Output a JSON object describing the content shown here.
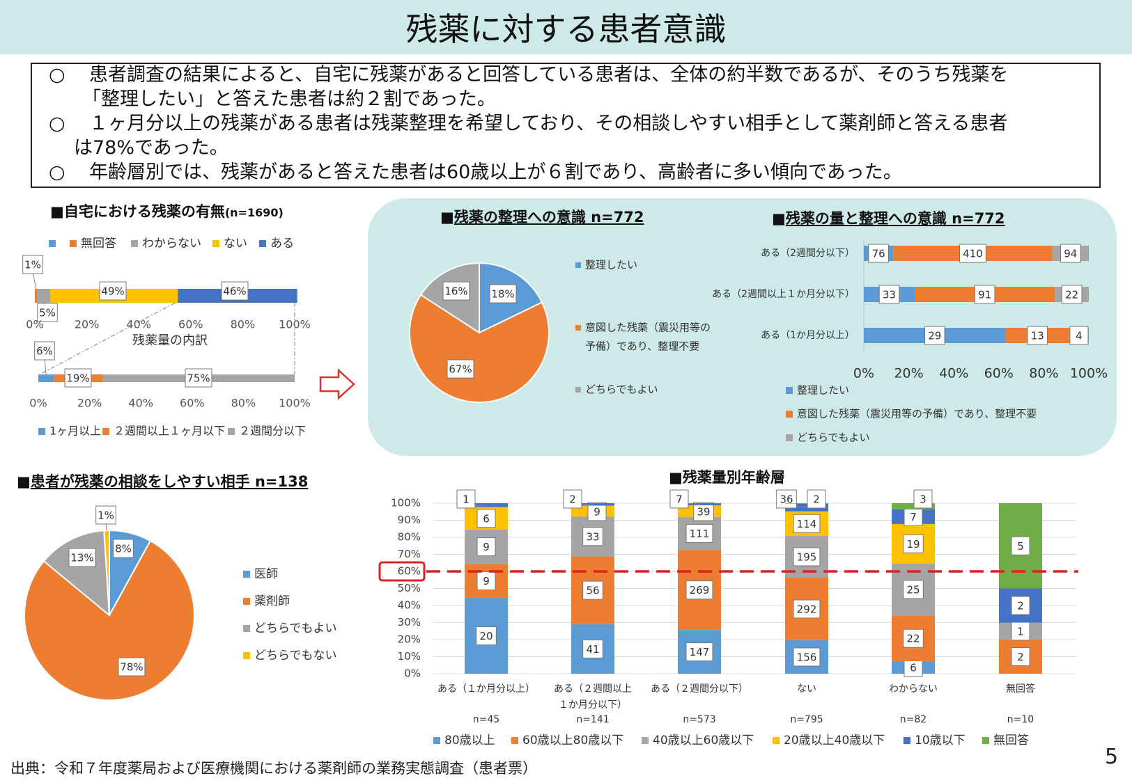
{
  "title": "残薬に対する患者意識",
  "summary": {
    "marker": "○",
    "b1_l1": "患者調査の結果によると、自宅に残薬があると回答している患者は、全体の約半数であるが、そのうち残薬を",
    "b1_l2": "「整理したい」と答えた患者は約２割であった。",
    "b2_l1": "１ヶ月分以上の残薬がある患者は残薬整理を希望しており、その相談しやすい相手として薬剤師と答える患者",
    "b2_l2": "は78%であった。",
    "b3_l1": "年齢層別では、残薬があると答えた患者は60歳以上が６割であり、高齢者に多い傾向であった。"
  },
  "sections": {
    "home_title": "■自宅における残薬の有無",
    "home_n": "(n=1690)",
    "organize_title_mark": "■",
    "organize_title": "残薬の整理への意識  n=772",
    "amount_title_mark": "■",
    "amount_title": "残薬の量と整理への意識 n=772",
    "consult_title_mark": "■",
    "consult_title": "患者が残薬の相談をしやすい相手  n=138",
    "age_title": "■残薬量別年齢層"
  },
  "source": "出典：令和７年度薬局および医療機関における薬剤師の業務実態調査（患者票）",
  "page_number": "5",
  "chart_data": [
    {
      "id": "home",
      "type": "bar",
      "orientation": "horizontal-stacked-percent",
      "legend": [
        "",
        "無回答",
        "わからない",
        "ない",
        "ある"
      ],
      "colors": [
        "#5b9bd5",
        "#ed7d31",
        "#a5a5a5",
        "#ffc000",
        "#4472c4"
      ],
      "values": [
        0,
        1,
        5,
        49,
        46
      ],
      "labels": [
        "",
        "1%",
        "5%",
        "49%",
        "46%"
      ],
      "ticks": [
        "0%",
        "20%",
        "40%",
        "60%",
        "80%",
        "100%"
      ],
      "legend_position": "top"
    },
    {
      "id": "breakdown",
      "type": "bar",
      "orientation": "horizontal-stacked-percent",
      "title": "残薬量の内訳",
      "legend": [
        "1ヶ月以上",
        "２週間以上１ヶ月以下",
        "２週間分以下"
      ],
      "colors": [
        "#5b9bd5",
        "#ed7d31",
        "#a5a5a5"
      ],
      "values": [
        6,
        19,
        75
      ],
      "labels": [
        "6%",
        "19%",
        "75%"
      ],
      "ticks": [
        "0%",
        "20%",
        "40%",
        "60%",
        "80%",
        "100%"
      ],
      "legend_position": "bottom"
    },
    {
      "id": "organize",
      "type": "pie",
      "legend": [
        "整理したい",
        "意図した残薬（震災用等の予備）であり、整理不要",
        "どちらでもよい"
      ],
      "legend_lines": [
        [
          "整理したい"
        ],
        [
          "意図した残薬（震災用等の",
          "予備）であり、整理不要"
        ],
        [
          "どちらでもよい"
        ]
      ],
      "colors": [
        "#5b9bd5",
        "#ed7d31",
        "#a5a5a5"
      ],
      "values": [
        18,
        67,
        16
      ],
      "labels": [
        "18%",
        "67%",
        "16%"
      ],
      "legend_position": "right"
    },
    {
      "id": "amount",
      "type": "bar",
      "orientation": "horizontal-stacked-percent",
      "categories": [
        "ある（2週間分以下）",
        "ある（2週間以上１か月分以下）",
        "ある（1か月分以上）"
      ],
      "series": [
        {
          "name": "整理したい",
          "values": [
            76,
            33,
            29
          ]
        },
        {
          "name": "意図した残薬（震災用等の予備）であり、整理不要",
          "values": [
            410,
            91,
            13
          ]
        },
        {
          "name": "どちらでもよい",
          "values": [
            94,
            22,
            4
          ]
        }
      ],
      "colors": [
        "#5b9bd5",
        "#ed7d31",
        "#a5a5a5"
      ],
      "ticks": [
        "0%",
        "20%",
        "40%",
        "60%",
        "80%",
        "100%"
      ],
      "legend_position": "bottom"
    },
    {
      "id": "consult",
      "type": "pie",
      "legend": [
        "医師",
        "薬剤師",
        "どちらでもよい",
        "どちらでもない"
      ],
      "colors": [
        "#5b9bd5",
        "#ed7d31",
        "#a5a5a5",
        "#ffc000"
      ],
      "values": [
        8,
        78,
        13,
        1
      ],
      "labels": [
        "8%",
        "78%",
        "13%",
        "1%"
      ],
      "legend_position": "right"
    },
    {
      "id": "age",
      "type": "bar",
      "orientation": "vertical-stacked-percent",
      "categories": [
        [
          "ある（１か月分以上）"
        ],
        [
          "ある（２週間以上",
          "１か月分以下）"
        ],
        [
          "ある（２週間分以下）"
        ],
        [
          "ない"
        ],
        [
          "わからない"
        ],
        [
          "無回答"
        ]
      ],
      "n_labels": [
        "n=45",
        "n=141",
        "n=573",
        "n=795",
        "n=82",
        "n=10"
      ],
      "series": [
        {
          "name": "80歳以上",
          "values": [
            20,
            41,
            147,
            156,
            6,
            0
          ]
        },
        {
          "name": "60歳以上80歳以下",
          "values": [
            9,
            56,
            269,
            292,
            22,
            2
          ]
        },
        {
          "name": "40歳以上60歳以下",
          "values": [
            9,
            33,
            111,
            195,
            25,
            1
          ]
        },
        {
          "name": "20歳以上40歳以下",
          "values": [
            6,
            9,
            39,
            114,
            19,
            0
          ]
        },
        {
          "name": "10歳以下",
          "values": [
            1,
            2,
            7,
            36,
            7,
            2
          ]
        },
        {
          "name": "無回答",
          "values": [
            0,
            0,
            0,
            2,
            3,
            5
          ]
        }
      ],
      "colors": [
        "#5b9bd5",
        "#ed7d31",
        "#a5a5a5",
        "#ffc000",
        "#4472c4",
        "#70ad47"
      ],
      "ticks": [
        "0%",
        "10%",
        "20%",
        "30%",
        "40%",
        "50%",
        "60%",
        "70%",
        "80%",
        "90%",
        "100%"
      ],
      "reference_line": 60,
      "highlighted_tick": "60%",
      "legend_position": "bottom"
    }
  ]
}
